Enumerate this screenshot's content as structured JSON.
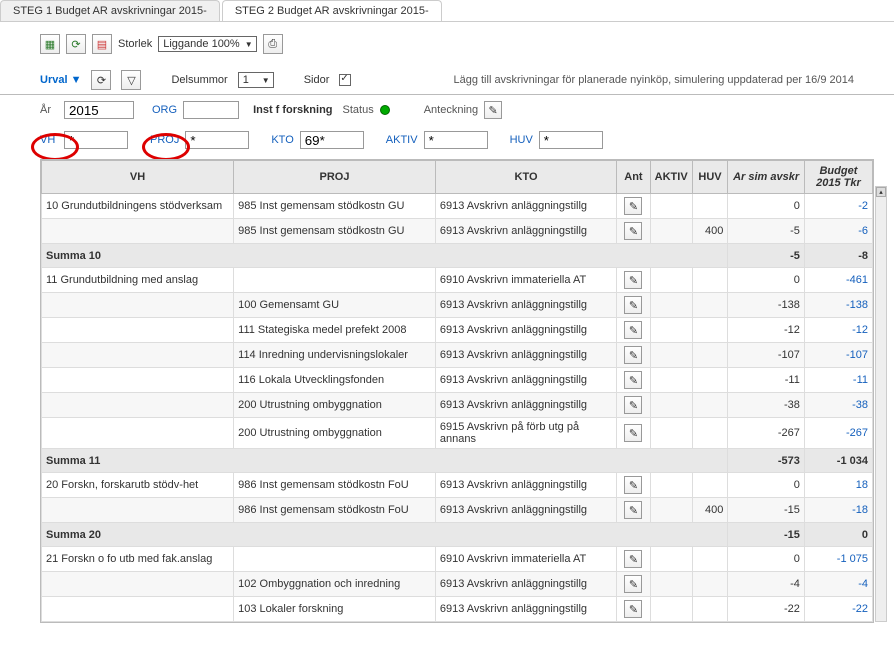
{
  "tabs": [
    {
      "label": "STEG 1 Budget AR avskrivningar 2015-",
      "active": false
    },
    {
      "label": "STEG 2 Budget AR avskrivningar 2015-",
      "active": true
    }
  ],
  "toolbar": {
    "storlek_label": "Storlek",
    "storlek_value": "Liggande 100%"
  },
  "filter": {
    "urval_label": "Urval",
    "delsummor_label": "Delsummor",
    "delsummor_value": "1",
    "sidor_label": "Sidor",
    "info_text": "Lägg till avskrivningar för planerade nyinköp, simulering uppdaterad per 16/9 2014"
  },
  "params": {
    "ar_label": "År",
    "ar_value": "2015",
    "org_label": "ORG",
    "org_value": "",
    "inst_label": "Inst f forskning",
    "status_label": "Status",
    "anteckning_label": "Anteckning",
    "vh_label": "VH",
    "vh_value": "*",
    "proj_label": "PROJ",
    "proj_value": "*",
    "kto_label": "KTO",
    "kto_value": "69*",
    "aktiv_label": "AKTIV",
    "aktiv_value": "*",
    "huv_label": "HUV",
    "huv_value": "*"
  },
  "columns": {
    "vh": "VH",
    "proj": "PROJ",
    "kto": "KTO",
    "ant": "Ant",
    "aktiv": "AKTIV",
    "huv": "HUV",
    "avskr": "Ar sim avskr",
    "budget1": "Budget",
    "budget2": "2015 Tkr"
  },
  "rows": [
    {
      "vh": "10 Grundutbildningens stödverksam",
      "proj": "985 Inst gemensam stödkostn GU",
      "kto": "6913 Avskrivn anläggningstillg",
      "aktiv": "",
      "huv": "",
      "avskr": "0",
      "budget": "-2",
      "alt": false
    },
    {
      "vh": "",
      "proj": "985 Inst gemensam stödkostn GU",
      "kto": "6913 Avskrivn anläggningstillg",
      "aktiv": "",
      "huv": "400",
      "avskr": "-5",
      "budget": "-6",
      "alt": true
    },
    {
      "sum": true,
      "vh": "Summa 10",
      "avskr": "-5",
      "budget": "-8"
    },
    {
      "vh": "11 Grundutbildning med anslag",
      "proj": "",
      "kto": "6910 Avskrivn immateriella AT",
      "aktiv": "",
      "huv": "",
      "avskr": "0",
      "budget": "-461",
      "alt": false
    },
    {
      "vh": "",
      "proj": "100 Gemensamt GU",
      "kto": "6913 Avskrivn anläggningstillg",
      "aktiv": "",
      "huv": "",
      "avskr": "-138",
      "budget": "-138",
      "alt": true
    },
    {
      "vh": "",
      "proj": "111 Stategiska medel prefekt 2008",
      "kto": "6913 Avskrivn anläggningstillg",
      "aktiv": "",
      "huv": "",
      "avskr": "-12",
      "budget": "-12",
      "alt": false
    },
    {
      "vh": "",
      "proj": "114 Inredning undervisningslokaler",
      "kto": "6913 Avskrivn anläggningstillg",
      "aktiv": "",
      "huv": "",
      "avskr": "-107",
      "budget": "-107",
      "alt": true
    },
    {
      "vh": "",
      "proj": "116 Lokala Utvecklingsfonden",
      "kto": "6913 Avskrivn anläggningstillg",
      "aktiv": "",
      "huv": "",
      "avskr": "-11",
      "budget": "-11",
      "alt": false
    },
    {
      "vh": "",
      "proj": "200 Utrustning ombyggnation",
      "kto": "6913 Avskrivn anläggningstillg",
      "aktiv": "",
      "huv": "",
      "avskr": "-38",
      "budget": "-38",
      "alt": true
    },
    {
      "vh": "",
      "proj": "200 Utrustning ombyggnation",
      "kto": "6915 Avskrivn på förb utg på annans",
      "aktiv": "",
      "huv": "",
      "avskr": "-267",
      "budget": "-267",
      "alt": false
    },
    {
      "sum": true,
      "vh": "Summa 11",
      "avskr": "-573",
      "budget": "-1 034"
    },
    {
      "vh": "20 Forskn, forskarutb stödv-het",
      "proj": "986 Inst gemensam stödkostn FoU",
      "kto": "6913 Avskrivn anläggningstillg",
      "aktiv": "",
      "huv": "",
      "avskr": "0",
      "budget": "18",
      "alt": false
    },
    {
      "vh": "",
      "proj": "986 Inst gemensam stödkostn FoU",
      "kto": "6913 Avskrivn anläggningstillg",
      "aktiv": "",
      "huv": "400",
      "avskr": "-15",
      "budget": "-18",
      "alt": true
    },
    {
      "sum": true,
      "vh": "Summa 20",
      "avskr": "-15",
      "budget": "0"
    },
    {
      "vh": "21 Forskn o fo utb med fak.anslag",
      "proj": "",
      "kto": "6910 Avskrivn immateriella AT",
      "aktiv": "",
      "huv": "",
      "avskr": "0",
      "budget": "-1 075",
      "alt": false
    },
    {
      "vh": "",
      "proj": "102 Ombyggnation och inredning",
      "kto": "6913 Avskrivn anläggningstillg",
      "aktiv": "",
      "huv": "",
      "avskr": "-4",
      "budget": "-4",
      "alt": true
    },
    {
      "vh": "",
      "proj": "103 Lokaler forskning",
      "kto": "6913 Avskrivn anläggningstillg",
      "aktiv": "",
      "huv": "",
      "avskr": "-22",
      "budget": "-22",
      "alt": false
    }
  ]
}
